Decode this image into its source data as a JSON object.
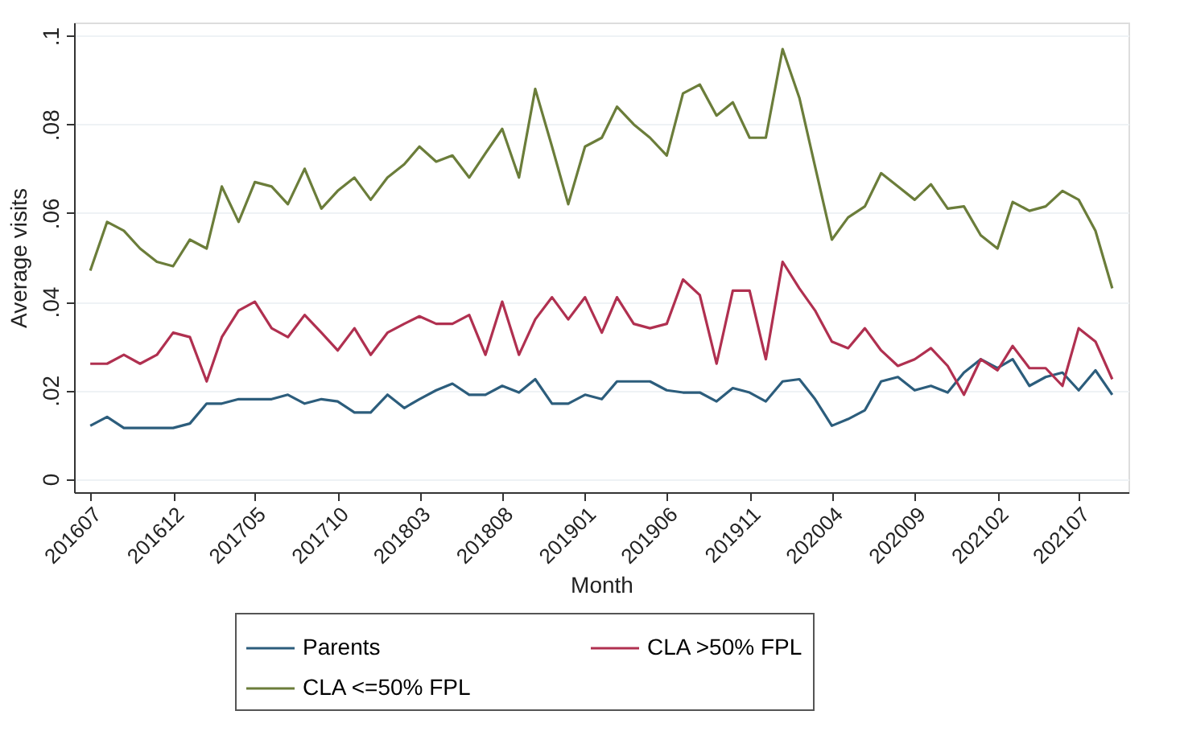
{
  "chart_data": {
    "type": "line",
    "xlabel": "Month",
    "ylabel": "Average visits",
    "x": [
      "2016-07",
      "2016-08",
      "2016-09",
      "2016-10",
      "2016-11",
      "2016-12",
      "2017-01",
      "2017-02",
      "2017-03",
      "2017-04",
      "2017-05",
      "2017-06",
      "2017-07",
      "2017-08",
      "2017-09",
      "2017-10",
      "2017-11",
      "2017-12",
      "2018-01",
      "2018-02",
      "2018-03",
      "2018-04",
      "2018-05",
      "2018-06",
      "2018-07",
      "2018-08",
      "2018-09",
      "2018-10",
      "2018-11",
      "2018-12",
      "2019-01",
      "2019-02",
      "2019-03",
      "2019-04",
      "2019-05",
      "2019-06",
      "2019-07",
      "2019-08",
      "2019-09",
      "2019-10",
      "2019-11",
      "2019-12",
      "2020-01",
      "2020-02",
      "2020-03",
      "2020-04",
      "2020-05",
      "2020-06",
      "2020-07",
      "2020-08",
      "2020-09",
      "2020-10",
      "2020-11",
      "2020-12",
      "2021-01",
      "2021-02",
      "2021-03",
      "2021-04",
      "2021-05",
      "2021-06",
      "2021-07",
      "2021-08",
      "2021-09"
    ],
    "series": [
      {
        "name": "Parents",
        "color": "#2c5d7c",
        "values": [
          0.012,
          0.014,
          0.0115,
          0.0115,
          0.0115,
          0.0115,
          0.0125,
          0.017,
          0.017,
          0.018,
          0.018,
          0.018,
          0.019,
          0.017,
          0.018,
          0.0175,
          0.015,
          0.015,
          0.019,
          0.016,
          0.018,
          0.02,
          0.0215,
          0.019,
          0.019,
          0.021,
          0.0195,
          0.0225,
          0.017,
          0.017,
          0.019,
          0.018,
          0.022,
          0.022,
          0.022,
          0.02,
          0.0195,
          0.0195,
          0.0175,
          0.0205,
          0.0195,
          0.0175,
          0.022,
          0.0225,
          0.018,
          0.012,
          0.0135,
          0.0155,
          0.022,
          0.023,
          0.02,
          0.021,
          0.0195,
          0.024,
          0.027,
          0.025,
          0.027,
          0.021,
          0.023,
          0.024,
          0.02,
          0.0245,
          0.019
        ]
      },
      {
        "name": "CLA >50% FPL",
        "color": "#b03050",
        "values": [
          0.026,
          0.026,
          0.028,
          0.026,
          0.028,
          0.033,
          0.032,
          0.022,
          0.032,
          0.038,
          0.04,
          0.034,
          0.032,
          0.037,
          0.033,
          0.029,
          0.034,
          0.028,
          0.033,
          0.035,
          0.0367,
          0.035,
          0.035,
          0.037,
          0.028,
          0.04,
          0.028,
          0.036,
          0.041,
          0.036,
          0.041,
          0.033,
          0.041,
          0.035,
          0.034,
          0.035,
          0.045,
          0.0415,
          0.026,
          0.0425,
          0.0425,
          0.027,
          0.049,
          0.043,
          0.038,
          0.031,
          0.0295,
          0.034,
          0.029,
          0.0255,
          0.027,
          0.0295,
          0.0255,
          0.019,
          0.027,
          0.0245,
          0.03,
          0.025,
          0.025,
          0.021,
          0.034,
          0.031,
          0.0225
        ]
      },
      {
        "name": "CLA <=50% FPL",
        "color": "#6b7d3a",
        "values": [
          0.047,
          0.058,
          0.056,
          0.052,
          0.049,
          0.048,
          0.054,
          0.052,
          0.066,
          0.058,
          0.067,
          0.066,
          0.062,
          0.07,
          0.061,
          0.065,
          0.068,
          0.063,
          0.068,
          0.071,
          0.075,
          0.0716,
          0.073,
          0.068,
          0.0735,
          0.079,
          0.068,
          0.088,
          0.075,
          0.062,
          0.075,
          0.077,
          0.084,
          0.08,
          0.077,
          0.073,
          0.087,
          0.089,
          0.082,
          0.085,
          0.077,
          0.077,
          0.097,
          0.086,
          0.0705,
          0.054,
          0.059,
          0.0615,
          0.069,
          0.066,
          0.063,
          0.0665,
          0.061,
          0.0615,
          0.055,
          0.052,
          0.0625,
          0.0605,
          0.0615,
          0.065,
          0.063,
          0.056,
          0.043
        ]
      }
    ],
    "xlim": [
      "2016-06",
      "2021-10"
    ],
    "xticks": [
      {
        "value": "2016-07",
        "label": "201607"
      },
      {
        "value": "2016-12",
        "label": "201612"
      },
      {
        "value": "2017-05",
        "label": "201705"
      },
      {
        "value": "2017-10",
        "label": "201710"
      },
      {
        "value": "2018-03",
        "label": "201803"
      },
      {
        "value": "2018-08",
        "label": "201808"
      },
      {
        "value": "2019-01",
        "label": "201901"
      },
      {
        "value": "2019-06",
        "label": "201906"
      },
      {
        "value": "2019-11",
        "label": "201911"
      },
      {
        "value": "2020-04",
        "label": "202004"
      },
      {
        "value": "2020-09",
        "label": "202009"
      },
      {
        "value": "2021-02",
        "label": "202102"
      },
      {
        "value": "2021-07",
        "label": "202107"
      }
    ],
    "ylim": [
      -0.003,
      0.103
    ],
    "yticks": [
      0,
      {
        "value": 0.02,
        "label": ".02"
      },
      {
        "value": 0.04,
        "label": ".04"
      },
      {
        "value": 0.06,
        "label": ".06"
      },
      {
        "value": 0.08,
        "label": ".08"
      },
      {
        "value": 0.1,
        "label": ".1"
      }
    ],
    "grid": "y",
    "legend": "bottom",
    "marker": "none",
    "line_style": "solid"
  }
}
